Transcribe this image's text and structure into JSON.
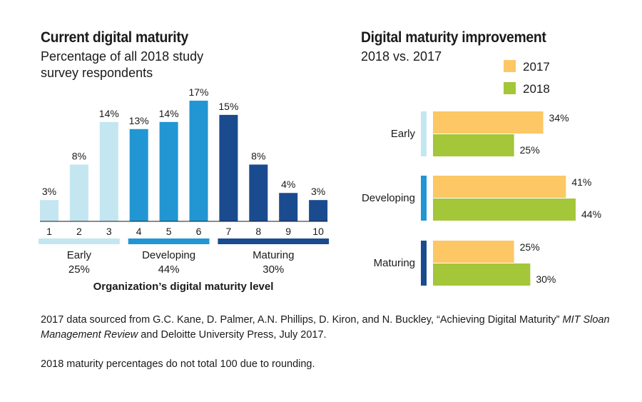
{
  "chart_data": [
    {
      "type": "bar",
      "title": "Current digital maturity",
      "subtitle": "Percentage of all 2018 study survey respondents",
      "xlabel": "Organization’s digital maturity level",
      "categories": [
        "1",
        "2",
        "3",
        "4",
        "5",
        "6",
        "7",
        "8",
        "9",
        "10"
      ],
      "values": [
        3,
        8,
        14,
        13,
        14,
        17,
        15,
        8,
        4,
        3
      ],
      "value_labels": [
        "3%",
        "8%",
        "14%",
        "13%",
        "14%",
        "17%",
        "15%",
        "8%",
        "4%",
        "3%"
      ],
      "groups": [
        {
          "name": "Early",
          "total": "25%",
          "members": [
            1,
            2,
            3
          ],
          "color": "#c3e6f1"
        },
        {
          "name": "Developing",
          "total": "44%",
          "members": [
            4,
            5,
            6
          ],
          "color": "#2196d3"
        },
        {
          "name": "Maturing",
          "total": "30%",
          "members": [
            7,
            8,
            9,
            10
          ],
          "color": "#1a4b8f"
        }
      ],
      "ylim": [
        0,
        17
      ]
    },
    {
      "type": "bar",
      "orientation": "horizontal",
      "title": "Digital maturity improvement",
      "subtitle": "2018 vs. 2017",
      "categories": [
        "Early",
        "Developing",
        "Maturing"
      ],
      "category_colors": [
        "#c3e6f1",
        "#2196d3",
        "#1a4b8f"
      ],
      "series": [
        {
          "name": "2017",
          "color": "#fdc765",
          "values": [
            34,
            41,
            25
          ],
          "labels": [
            "34%",
            "41%",
            "25%"
          ]
        },
        {
          "name": "2018",
          "color": "#a4c639",
          "values": [
            25,
            44,
            30
          ],
          "labels": [
            "25%",
            "44%",
            "30%"
          ]
        }
      ],
      "xlim": [
        0,
        44
      ],
      "legend": "top-right"
    }
  ],
  "footnotes": {
    "source_pre": "2017 data sourced from G.C. Kane, D. Palmer, A.N. Phillips, D. Kiron, and N. Buckley, “Achieving Digital Maturity” ",
    "source_italic": "MIT Sloan Management Review",
    "source_post": " and Deloitte University Press, July 2017.",
    "rounding": "2018 maturity percentages do not total 100 due to rounding."
  }
}
